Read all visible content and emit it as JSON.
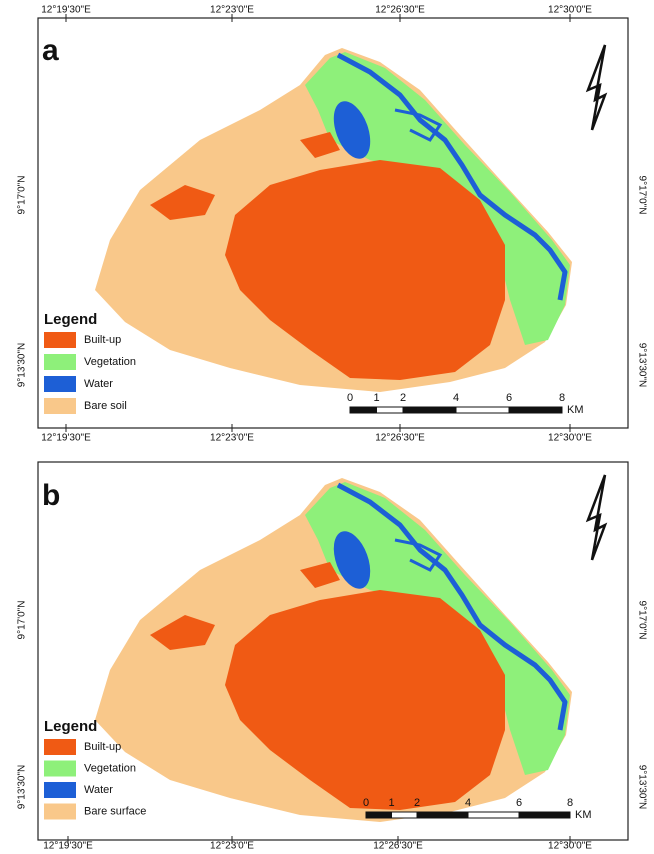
{
  "panels": [
    {
      "letter": "a",
      "top_labels": [
        "12°19'30\"E",
        "12°23'0\"E",
        "12°26'30\"E",
        "12°30'0\"E"
      ],
      "bottom_labels": [
        "12°19'30\"E",
        "12°23'0\"E",
        "12°26'30\"E",
        "12°30'0\"E"
      ],
      "left_labels": [
        "9°17'0\"N",
        "9°13'30\"N"
      ],
      "right_labels": [
        "9°17'0\"N",
        "9°13'30\"N"
      ],
      "legend": {
        "title": "Legend",
        "items": [
          {
            "label": "Built-up",
            "color": "#f05a14"
          },
          {
            "label": "Vegetation",
            "color": "#8ef07a"
          },
          {
            "label": "Water",
            "color": "#1d5fd6"
          },
          {
            "label": "Bare soil",
            "color": "#f9c88a"
          }
        ]
      },
      "scale": {
        "ticks": [
          0,
          1,
          2,
          4,
          6,
          8
        ],
        "unit": "KM"
      }
    },
    {
      "letter": "b",
      "bottom_labels": [
        "12°19'30\"E",
        "12°23'0\"E",
        "12°26'30\"E",
        "12°30'0\"E"
      ],
      "left_labels": [
        "9°17'0\"N",
        "9°13'30\"N"
      ],
      "right_labels": [
        "9°17'0\"N",
        "9°13'30\"N"
      ],
      "legend": {
        "title": "Legend",
        "items": [
          {
            "label": "Built-up",
            "color": "#f05a14"
          },
          {
            "label": "Vegetation",
            "color": "#8ef07a"
          },
          {
            "label": "Water",
            "color": "#1d5fd6"
          },
          {
            "label": "Bare surface",
            "color": "#f9c88a"
          }
        ]
      },
      "scale": {
        "ticks": [
          0,
          1,
          2,
          4,
          6,
          8
        ],
        "unit": "KM"
      }
    }
  ]
}
